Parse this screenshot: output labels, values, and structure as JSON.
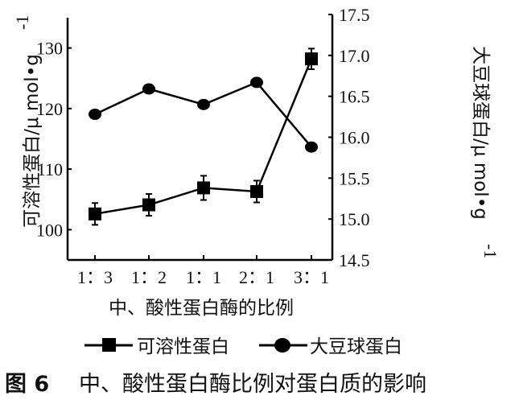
{
  "chart_data": {
    "type": "line",
    "categories": [
      "1：3",
      "1：2",
      "1：1",
      "2：1",
      "3：1"
    ],
    "xlabel": "中、酸性蛋白酶的比例",
    "ylabel_left": "可溶性蛋白/μ mol·g⁻¹",
    "ylabel_left_main": "可溶性蛋白/μ mol•g",
    "ylabel_right_main": "大豆球蛋白/μ mol•g",
    "ylabel_sup": "-1",
    "ylim_left": [
      95,
      135
    ],
    "yticks_left": [
      "100",
      "110",
      "120",
      "130"
    ],
    "ylim_right": [
      14.5,
      17.5
    ],
    "yticks_right": [
      "14.5",
      "15.0",
      "15.5",
      "16.0",
      "16.5",
      "17.0",
      "17.5"
    ],
    "grid": false,
    "legend_placement": "bottom",
    "series": [
      {
        "name": "可溶性蛋白",
        "axis": "left",
        "marker": "square",
        "values": [
          102.6,
          104.1,
          106.9,
          106.3,
          128.2
        ],
        "errors": [
          1.8,
          1.8,
          2.0,
          1.8,
          1.7
        ]
      },
      {
        "name": "大豆球蛋白",
        "axis": "right",
        "marker": "circle",
        "values": [
          16.28,
          16.59,
          16.4,
          16.67,
          15.88
        ],
        "errors": [
          0.05,
          0.05,
          0.05,
          0.04,
          0.05
        ]
      }
    ],
    "caption_label": "图 6",
    "caption": "中、酸性蛋白酶比例对蛋白质的影响"
  }
}
